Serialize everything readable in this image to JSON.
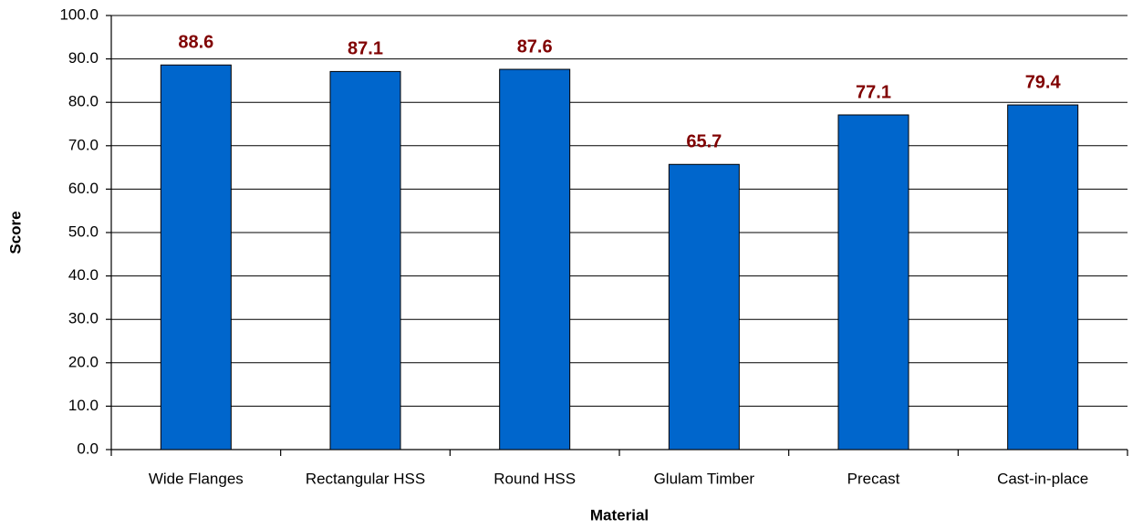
{
  "chart_data": {
    "type": "bar",
    "x_label": "Material",
    "y_label": "Score",
    "categories": [
      "Wide Flanges",
      "Rectangular HSS",
      "Round HSS",
      "Glulam Timber",
      "Precast",
      "Cast-in-place"
    ],
    "values": [
      88.6,
      87.1,
      87.6,
      65.7,
      77.1,
      79.4
    ],
    "color": "#0066cc",
    "ylim": [
      0,
      100
    ],
    "yticks": [
      {
        "value": 0,
        "label": "0.0"
      },
      {
        "value": 10,
        "label": "10.0"
      },
      {
        "value": 20,
        "label": "20.0"
      },
      {
        "value": 30,
        "label": "30.0"
      },
      {
        "value": 40,
        "label": "40.0"
      },
      {
        "value": 50,
        "label": "50.0"
      },
      {
        "value": 60,
        "label": "60.0"
      },
      {
        "value": 70,
        "label": "70.0"
      },
      {
        "value": 80,
        "label": "80.0"
      },
      {
        "value": 90,
        "label": "90.0"
      },
      {
        "value": 100,
        "label": "100.0"
      }
    ],
    "grid": true
  }
}
